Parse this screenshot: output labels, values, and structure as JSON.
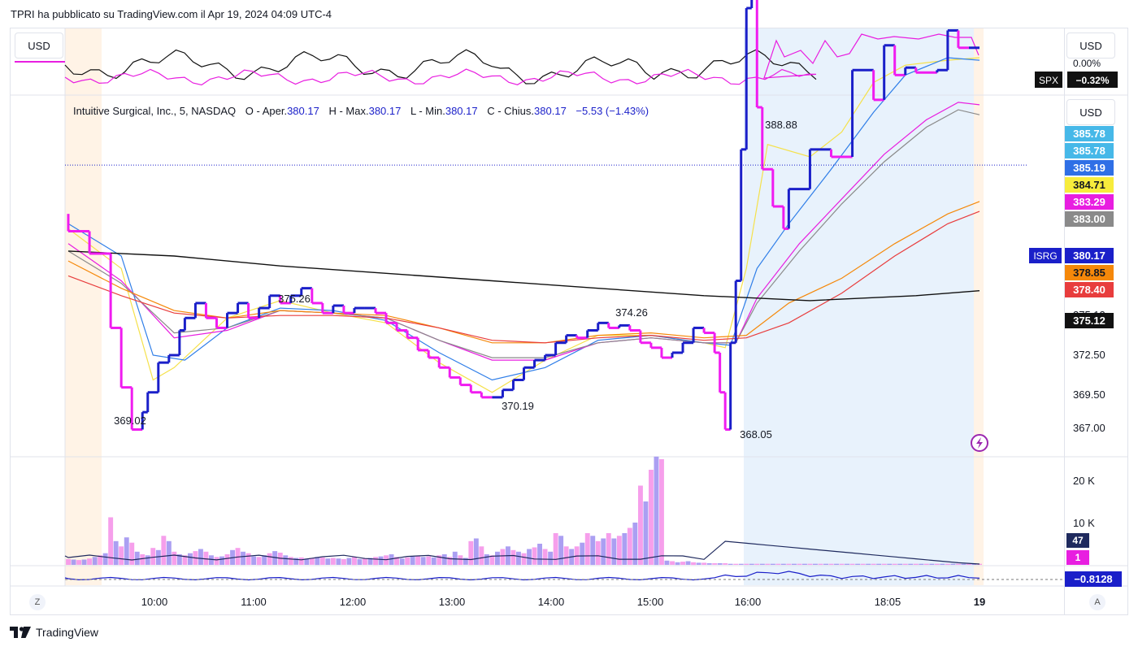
{
  "header": {
    "published": "TPRI ha pubblicato su TradingView.com il Apr 19, 2024 04:09 UTC-4"
  },
  "footer": {
    "logo_text": "TradingView"
  },
  "currency_label": "USD",
  "buttons": {
    "z": "Z",
    "a": "A"
  },
  "spx": {
    "symbol": "SPX",
    "change": "−0.32%",
    "cut_label": "0.00%"
  },
  "legend": {
    "name": "Intuitive Surgical, Inc., 5, NASDAQ",
    "o_label": "O - Aper.",
    "o": "380.17",
    "h_label": "H - Max.",
    "h": "380.17",
    "l_label": "L - Min.",
    "l": "380.17",
    "c_label": "C - Chius.",
    "c": "380.17",
    "change": "−5.53 (−1.43%)"
  },
  "colors": {
    "up": "#1a1fc9",
    "down": "#f01cf0",
    "session_pre": "#fff3e6",
    "session_post": "#e8f2fc",
    "ma_yellow": "#f5e14a",
    "ma_blue": "#2f7ee8",
    "ma_magenta": "#e81ee0",
    "ma_gray": "#8a8a8a",
    "ma_orange": "#f5880a",
    "ma_red": "#e83d3d",
    "ma_black": "#111111",
    "spx_line": "#111111",
    "rel_line": "#e81ee0",
    "osc_line": "#1a1fc9"
  },
  "chart_data": {
    "type": "candlestick",
    "title": "Intuitive Surgical, Inc., 5, NASDAQ",
    "symbol": "ISRG",
    "time_axis": [
      "10:00",
      "11:00",
      "12:00",
      "13:00",
      "14:00",
      "15:00",
      "16:00",
      "18:05",
      "19"
    ],
    "price_axis": [
      "372.50",
      "369.50",
      "367.00"
    ],
    "price_axis_clipped": [
      "375.12"
    ],
    "extremes": [
      {
        "label": "369.02",
        "kind": "low"
      },
      {
        "label": "375.26",
        "kind": "high"
      },
      {
        "label": "370.19",
        "kind": "low"
      },
      {
        "label": "374.26",
        "kind": "high"
      },
      {
        "label": "388.88",
        "kind": "high"
      },
      {
        "label": "368.05",
        "kind": "low"
      }
    ],
    "price_labels": [
      {
        "value": "385.78",
        "color": "#46b8e8",
        "text_color": "#ffffff",
        "clipped": true
      },
      {
        "value": "385.78",
        "color": "#46b8e8",
        "text_color": "#ffffff"
      },
      {
        "value": "385.19",
        "color": "#2f6fe6",
        "text_color": "#ffffff"
      },
      {
        "value": "384.71",
        "color": "#f7ec3c",
        "text_color": "#131722"
      },
      {
        "value": "383.29",
        "color": "#e81ee0",
        "text_color": "#ffffff"
      },
      {
        "value": "383.00",
        "color": "#8a8a8a",
        "text_color": "#ffffff"
      },
      {
        "value": "380.17",
        "color": "#1a1fc9",
        "text_color": "#ffffff",
        "tag": "ISRG"
      },
      {
        "value": "378.85",
        "color": "#f5880a",
        "text_color": "#131722"
      },
      {
        "value": "378.40",
        "color": "#e83d3d",
        "text_color": "#ffffff"
      },
      {
        "value": "375.12",
        "color": "#111111",
        "text_color": "#ffffff"
      }
    ],
    "price_series": [
      [
        0,
        378.2
      ],
      [
        4,
        377.5
      ],
      [
        8,
        376.6
      ],
      [
        10,
        373.6
      ],
      [
        12,
        371.2
      ],
      [
        14,
        369.5
      ],
      [
        15,
        370.2
      ],
      [
        17,
        371.0
      ],
      [
        19,
        372.2
      ],
      [
        21,
        372.5
      ],
      [
        22,
        373.5
      ],
      [
        24,
        374.0
      ],
      [
        26,
        374.6
      ],
      [
        28,
        374.0
      ],
      [
        30,
        373.6
      ],
      [
        32,
        374.2
      ],
      [
        34,
        374.6
      ],
      [
        36,
        374.0
      ],
      [
        38,
        374.4
      ],
      [
        40,
        374.9
      ],
      [
        42,
        374.6
      ],
      [
        44,
        374.9
      ],
      [
        46,
        375.2
      ],
      [
        48,
        374.6
      ],
      [
        50,
        374.2
      ],
      [
        52,
        374.5
      ],
      [
        54,
        374.2
      ],
      [
        56,
        374.4
      ],
      [
        58,
        374.4
      ],
      [
        60,
        374.2
      ],
      [
        62,
        373.8
      ],
      [
        64,
        373.5
      ],
      [
        66,
        373.2
      ],
      [
        68,
        372.7
      ],
      [
        70,
        372.4
      ],
      [
        72,
        372.0
      ],
      [
        74,
        371.6
      ],
      [
        76,
        371.3
      ],
      [
        78,
        371.0
      ],
      [
        80,
        370.8
      ],
      [
        82,
        370.8
      ],
      [
        84,
        371.1
      ],
      [
        86,
        371.5
      ],
      [
        88,
        372.0
      ],
      [
        90,
        372.3
      ],
      [
        92,
        372.5
      ],
      [
        94,
        373.0
      ],
      [
        96,
        373.3
      ],
      [
        98,
        373.2
      ],
      [
        100,
        373.5
      ],
      [
        102,
        373.8
      ],
      [
        104,
        373.6
      ],
      [
        106,
        373.7
      ],
      [
        108,
        373.5
      ],
      [
        110,
        373.0
      ],
      [
        112,
        372.8
      ],
      [
        114,
        372.4
      ],
      [
        116,
        372.6
      ],
      [
        118,
        373.0
      ],
      [
        120,
        373.6
      ],
      [
        122,
        373.4
      ],
      [
        123,
        372.6
      ],
      [
        124,
        371.0
      ],
      [
        125,
        369.5
      ],
      [
        126,
        373.0
      ],
      [
        127,
        375.5
      ],
      [
        128,
        380.8
      ],
      [
        129,
        386.5
      ],
      [
        130,
        388.0
      ],
      [
        131,
        382.5
      ],
      [
        133,
        380.0
      ],
      [
        135,
        378.5
      ],
      [
        136,
        377.6
      ],
      [
        140,
        379.2
      ],
      [
        144,
        380.8
      ],
      [
        148,
        380.5
      ],
      [
        152,
        384.0
      ],
      [
        154,
        382.8
      ],
      [
        156,
        385.0
      ],
      [
        158,
        383.8
      ],
      [
        160,
        384.1
      ],
      [
        164,
        383.9
      ],
      [
        166,
        384.0
      ],
      [
        168,
        385.6
      ],
      [
        170,
        384.9
      ],
      [
        172,
        384.9
      ]
    ],
    "ma_lines": [
      {
        "color": "#f5e14a",
        "points": [
          [
            0,
            377.6
          ],
          [
            10,
            376.0
          ],
          [
            16,
            371.5
          ],
          [
            20,
            372.0
          ],
          [
            30,
            374.0
          ],
          [
            40,
            374.7
          ],
          [
            50,
            374.2
          ],
          [
            60,
            373.8
          ],
          [
            70,
            372.2
          ],
          [
            80,
            371.0
          ],
          [
            90,
            372.3
          ],
          [
            100,
            373.3
          ],
          [
            110,
            373.3
          ],
          [
            120,
            373.0
          ],
          [
            124,
            372.8
          ],
          [
            128,
            376.0
          ],
          [
            132,
            381.0
          ],
          [
            140,
            380.5
          ],
          [
            146,
            381.5
          ],
          [
            152,
            383.5
          ],
          [
            158,
            384.2
          ],
          [
            166,
            384.4
          ],
          [
            172,
            384.5
          ]
        ]
      },
      {
        "color": "#2f7ee8",
        "points": [
          [
            0,
            377.8
          ],
          [
            10,
            376.5
          ],
          [
            16,
            372.5
          ],
          [
            22,
            372.3
          ],
          [
            30,
            373.6
          ],
          [
            40,
            374.4
          ],
          [
            50,
            374.3
          ],
          [
            60,
            373.9
          ],
          [
            70,
            372.6
          ],
          [
            80,
            371.5
          ],
          [
            90,
            372.0
          ],
          [
            100,
            373.1
          ],
          [
            110,
            373.3
          ],
          [
            120,
            373.0
          ],
          [
            125,
            372.9
          ],
          [
            130,
            376.0
          ],
          [
            136,
            377.8
          ],
          [
            144,
            380.0
          ],
          [
            152,
            382.3
          ],
          [
            158,
            383.8
          ],
          [
            166,
            384.5
          ],
          [
            172,
            384.4
          ]
        ]
      },
      {
        "color": "#e81ee0",
        "points": [
          [
            0,
            377.0
          ],
          [
            10,
            375.5
          ],
          [
            20,
            373.2
          ],
          [
            30,
            373.5
          ],
          [
            40,
            374.3
          ],
          [
            50,
            374.2
          ],
          [
            60,
            374.0
          ],
          [
            70,
            373.1
          ],
          [
            80,
            372.3
          ],
          [
            90,
            372.3
          ],
          [
            100,
            373.0
          ],
          [
            110,
            373.2
          ],
          [
            120,
            373.0
          ],
          [
            126,
            373.0
          ],
          [
            130,
            374.8
          ],
          [
            138,
            377.0
          ],
          [
            146,
            378.8
          ],
          [
            154,
            380.6
          ],
          [
            162,
            382.0
          ],
          [
            168,
            382.7
          ],
          [
            172,
            382.6
          ]
        ]
      },
      {
        "color": "#8a8a8a",
        "points": [
          [
            0,
            376.7
          ],
          [
            10,
            375.4
          ],
          [
            20,
            373.4
          ],
          [
            30,
            373.6
          ],
          [
            40,
            374.3
          ],
          [
            50,
            374.2
          ],
          [
            60,
            374.0
          ],
          [
            70,
            373.1
          ],
          [
            80,
            372.4
          ],
          [
            90,
            372.4
          ],
          [
            100,
            373.0
          ],
          [
            110,
            373.2
          ],
          [
            120,
            373.0
          ],
          [
            126,
            373.0
          ],
          [
            130,
            374.6
          ],
          [
            138,
            376.7
          ],
          [
            146,
            378.6
          ],
          [
            154,
            380.3
          ],
          [
            162,
            381.7
          ],
          [
            168,
            382.4
          ],
          [
            172,
            382.2
          ]
        ]
      },
      {
        "color": "#f5880a",
        "points": [
          [
            0,
            376.3
          ],
          [
            10,
            375.2
          ],
          [
            20,
            374.3
          ],
          [
            30,
            374.0
          ],
          [
            40,
            374.3
          ],
          [
            50,
            374.2
          ],
          [
            60,
            374.1
          ],
          [
            70,
            373.6
          ],
          [
            80,
            373.0
          ],
          [
            90,
            373.0
          ],
          [
            100,
            373.3
          ],
          [
            110,
            373.4
          ],
          [
            120,
            373.2
          ],
          [
            128,
            373.3
          ],
          [
            136,
            374.6
          ],
          [
            146,
            375.6
          ],
          [
            156,
            377.0
          ],
          [
            166,
            378.2
          ],
          [
            172,
            378.7
          ]
        ]
      },
      {
        "color": "#e83d3d",
        "points": [
          [
            0,
            375.7
          ],
          [
            10,
            374.9
          ],
          [
            20,
            374.2
          ],
          [
            30,
            374.0
          ],
          [
            40,
            374.1
          ],
          [
            50,
            374.1
          ],
          [
            60,
            374.0
          ],
          [
            70,
            373.6
          ],
          [
            80,
            373.1
          ],
          [
            90,
            373.0
          ],
          [
            100,
            373.2
          ],
          [
            110,
            373.3
          ],
          [
            120,
            373.1
          ],
          [
            128,
            373.2
          ],
          [
            136,
            373.8
          ],
          [
            146,
            375.0
          ],
          [
            156,
            376.5
          ],
          [
            166,
            377.8
          ],
          [
            172,
            378.3
          ]
        ]
      },
      {
        "color": "#111111",
        "points": [
          [
            0,
            376.7
          ],
          [
            20,
            376.5
          ],
          [
            40,
            376.1
          ],
          [
            60,
            375.8
          ],
          [
            80,
            375.5
          ],
          [
            100,
            375.2
          ],
          [
            120,
            374.9
          ],
          [
            130,
            374.8
          ],
          [
            140,
            374.7
          ],
          [
            160,
            374.9
          ],
          [
            172,
            375.1
          ]
        ]
      }
    ],
    "volume_axis": [
      "20 K",
      "10 K"
    ],
    "volume_labels": [
      {
        "value": "47",
        "color": "#1f2a5e",
        "text_color": "#ffffff"
      },
      {
        "value": "1",
        "color": "#e81ee0",
        "text_color": "#ffffff"
      }
    ],
    "volume": [
      1100,
      1000,
      900,
      1000,
      1200,
      1500,
      1800,
      2200,
      9000,
      4500,
      3500,
      5200,
      4200,
      2500,
      2000,
      1800,
      3200,
      2800,
      5500,
      4500,
      2500,
      2000,
      1800,
      2200,
      2600,
      3000,
      2500,
      1800,
      1500,
      1600,
      2000,
      2800,
      3200,
      2500,
      2200,
      1600,
      1500,
      1800,
      2200,
      2600,
      2300,
      1800,
      1500,
      1300,
      1400,
      1200,
      1300,
      1500,
      1400,
      1200,
      1300,
      1200,
      1100,
      1300,
      1500,
      1100,
      1200,
      1300,
      1500,
      1600,
      1800,
      2000,
      1500,
      1200,
      1400,
      1600,
      1700,
      1500,
      1600,
      1400,
      1800,
      2000,
      1500,
      2500,
      1800,
      1300,
      4500,
      5000,
      3500,
      2000,
      1800,
      2500,
      3000,
      3500,
      2800,
      2500,
      2200,
      3000,
      3300,
      4000,
      3000,
      2500,
      6000,
      5500,
      3500,
      3000,
      3500,
      4200,
      6000,
      5500,
      4500,
      5000,
      6000,
      5000,
      5500,
      6000,
      7000,
      8000,
      15000,
      12000,
      18000,
      20500,
      20000,
      800,
      700,
      500,
      600,
      700,
      500,
      400,
      400,
      300,
      300,
      300,
      300,
      200,
      200,
      200,
      200,
      200,
      200,
      200,
      200,
      200,
      200,
      200,
      200,
      200,
      200,
      200,
      200,
      200,
      200,
      200,
      200,
      200,
      200,
      200,
      200,
      200,
      200,
      200,
      200,
      200,
      200,
      200,
      200,
      200,
      200,
      200,
      200,
      200,
      200,
      200,
      200,
      200,
      200,
      200,
      200,
      200,
      200,
      200,
      200
    ],
    "oscillator_label": "−0.8128"
  }
}
